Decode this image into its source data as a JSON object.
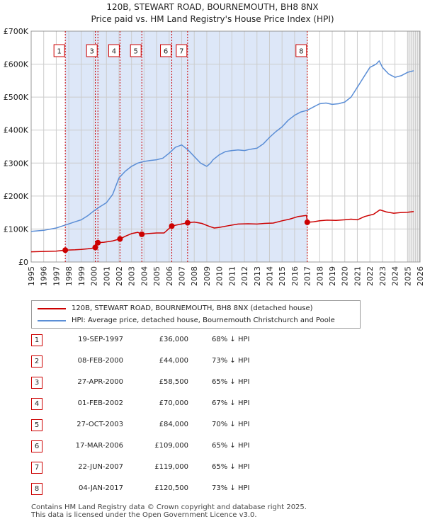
{
  "title": "120B, STEWART ROAD, BOURNEMOUTH, BH8 8NX",
  "subtitle": "Price paid vs. HM Land Registry's House Price Index (HPI)",
  "colors": {
    "property_line": "#cc0000",
    "hpi_line": "#5b8ed6",
    "highlight_band": "#dde7f8",
    "marker_dash": "#cc0000",
    "grid": "#cccccc"
  },
  "chart_data": {
    "type": "line",
    "title": "120B, STEWART ROAD, BOURNEMOUTH, BH8 8NX",
    "subtitle": "Price paid vs. HM Land Registry's House Price Index (HPI)",
    "xlabel": "",
    "ylabel": "",
    "xlim": [
      1995,
      2026
    ],
    "ylim": [
      0,
      700000
    ],
    "grid": true,
    "x_ticks": [
      1995,
      1996,
      1997,
      1998,
      1999,
      2000,
      2001,
      2002,
      2003,
      2004,
      2005,
      2006,
      2007,
      2008,
      2009,
      2010,
      2011,
      2012,
      2013,
      2014,
      2015,
      2016,
      2017,
      2018,
      2019,
      2020,
      2021,
      2022,
      2023,
      2024,
      2025,
      2026
    ],
    "y_ticks": [
      {
        "value": 0,
        "label": "£0"
      },
      {
        "value": 100000,
        "label": "£100K"
      },
      {
        "value": 200000,
        "label": "£200K"
      },
      {
        "value": 300000,
        "label": "£300K"
      },
      {
        "value": 400000,
        "label": "£400K"
      },
      {
        "value": 500000,
        "label": "£500K"
      },
      {
        "value": 600000,
        "label": "£600K"
      },
      {
        "value": 700000,
        "label": "£700K"
      }
    ],
    "highlight_ranges": [
      [
        1997.72,
        2017.01
      ]
    ],
    "forecast_start": 2025.0,
    "series": [
      {
        "name": "HPI: Average price, detached house, Bournemouth Christchurch and Poole",
        "x": [
          1995.0,
          1996.0,
          1997.0,
          1997.72,
          1998.5,
          1999.0,
          1999.5,
          2000.0,
          2000.5,
          2001.0,
          2001.5,
          2002.0,
          2002.5,
          2003.0,
          2003.5,
          2004.0,
          2004.5,
          2005.0,
          2005.5,
          2006.0,
          2006.5,
          2007.0,
          2007.5,
          2008.0,
          2008.5,
          2009.0,
          2009.3,
          2009.5,
          2010.0,
          2010.5,
          2011.0,
          2011.5,
          2012.0,
          2012.5,
          2013.0,
          2013.5,
          2014.0,
          2014.5,
          2015.0,
          2015.5,
          2016.0,
          2016.5,
          2017.0,
          2017.5,
          2018.0,
          2018.5,
          2019.0,
          2019.5,
          2020.0,
          2020.5,
          2021.0,
          2021.5,
          2022.0,
          2022.5,
          2022.75,
          2023.0,
          2023.5,
          2024.0,
          2024.5,
          2025.0,
          2025.5
        ],
        "values": [
          93000,
          96000,
          103000,
          112000,
          122000,
          128000,
          140000,
          155000,
          168000,
          180000,
          205000,
          255000,
          275000,
          290000,
          300000,
          305000,
          308000,
          310000,
          315000,
          330000,
          348000,
          355000,
          340000,
          320000,
          300000,
          290000,
          300000,
          310000,
          325000,
          335000,
          338000,
          340000,
          338000,
          342000,
          345000,
          358000,
          378000,
          395000,
          410000,
          430000,
          445000,
          455000,
          460000,
          470000,
          480000,
          482000,
          478000,
          480000,
          485000,
          500000,
          530000,
          560000,
          590000,
          600000,
          610000,
          590000,
          570000,
          560000,
          565000,
          575000,
          580000
        ]
      },
      {
        "name": "120B, STEWART ROAD, BOURNEMOUTH, BH8 8NX (detached house)",
        "x": [
          1995.0,
          1996.0,
          1997.0,
          1997.72,
          1998.5,
          1999.0,
          1999.5,
          2000.1,
          2000.11,
          2000.32,
          2000.8,
          2001.5,
          2002.08,
          2002.5,
          2003.0,
          2003.5,
          2003.82,
          2004.3,
          2005.0,
          2005.6,
          2006.21,
          2006.7,
          2007.47,
          2008.0,
          2008.6,
          2009.2,
          2009.6,
          2010.0,
          2010.7,
          2011.5,
          2012.3,
          2013.0,
          2013.6,
          2014.3,
          2015.0,
          2015.6,
          2016.3,
          2016.95,
          2017.01,
          2017.5,
          2018.0,
          2018.6,
          2019.3,
          2020.0,
          2020.5,
          2021.0,
          2021.6,
          2022.3,
          2022.8,
          2023.3,
          2023.9,
          2024.5,
          2025.0,
          2025.5
        ],
        "values": [
          31000,
          32000,
          33000,
          36000,
          37000,
          38000,
          40000,
          43000,
          44000,
          58500,
          60000,
          64000,
          70000,
          78000,
          86000,
          90000,
          84000,
          86000,
          88000,
          88000,
          109000,
          113000,
          119000,
          121000,
          117000,
          108000,
          103000,
          105000,
          110000,
          115000,
          116000,
          115000,
          117000,
          118000,
          125000,
          130000,
          138000,
          141000,
          120500,
          122000,
          125000,
          127000,
          126000,
          128000,
          130000,
          128000,
          138000,
          145000,
          158000,
          152000,
          148000,
          150000,
          151000,
          153000
        ]
      }
    ],
    "markers": [
      {
        "id": "1",
        "x": 1997.72,
        "value": 36000
      },
      {
        "id": "2",
        "x": 2000.11,
        "value": 44000
      },
      {
        "id": "3",
        "x": 2000.32,
        "value": 58500
      },
      {
        "id": "4",
        "x": 2002.08,
        "value": 70000
      },
      {
        "id": "5",
        "x": 2003.82,
        "value": 84000
      },
      {
        "id": "6",
        "x": 2006.21,
        "value": 109000
      },
      {
        "id": "7",
        "x": 2007.47,
        "value": 119000
      },
      {
        "id": "8",
        "x": 2017.01,
        "value": 120500
      }
    ],
    "label_boxes": [
      "1",
      "3",
      "4",
      "5",
      "6",
      "7",
      "8"
    ]
  },
  "legend": {
    "property_label": "120B, STEWART ROAD, BOURNEMOUTH, BH8 8NX (detached house)",
    "hpi_label": "HPI: Average price, detached house, Bournemouth Christchurch and Poole"
  },
  "transactions": [
    {
      "num": "1",
      "date": "19-SEP-1997",
      "price": "£36,000",
      "hpi": "68% ↓ HPI"
    },
    {
      "num": "2",
      "date": "08-FEB-2000",
      "price": "£44,000",
      "hpi": "73% ↓ HPI"
    },
    {
      "num": "3",
      "date": "27-APR-2000",
      "price": "£58,500",
      "hpi": "65% ↓ HPI"
    },
    {
      "num": "4",
      "date": "01-FEB-2002",
      "price": "£70,000",
      "hpi": "67% ↓ HPI"
    },
    {
      "num": "5",
      "date": "27-OCT-2003",
      "price": "£84,000",
      "hpi": "70% ↓ HPI"
    },
    {
      "num": "6",
      "date": "17-MAR-2006",
      "price": "£109,000",
      "hpi": "65% ↓ HPI"
    },
    {
      "num": "7",
      "date": "22-JUN-2007",
      "price": "£119,000",
      "hpi": "65% ↓ HPI"
    },
    {
      "num": "8",
      "date": "04-JAN-2017",
      "price": "£120,500",
      "hpi": "73% ↓ HPI"
    }
  ],
  "footer": {
    "line1": "Contains HM Land Registry data © Crown copyright and database right 2025.",
    "line2": "This data is licensed under the Open Government Licence v3.0."
  }
}
